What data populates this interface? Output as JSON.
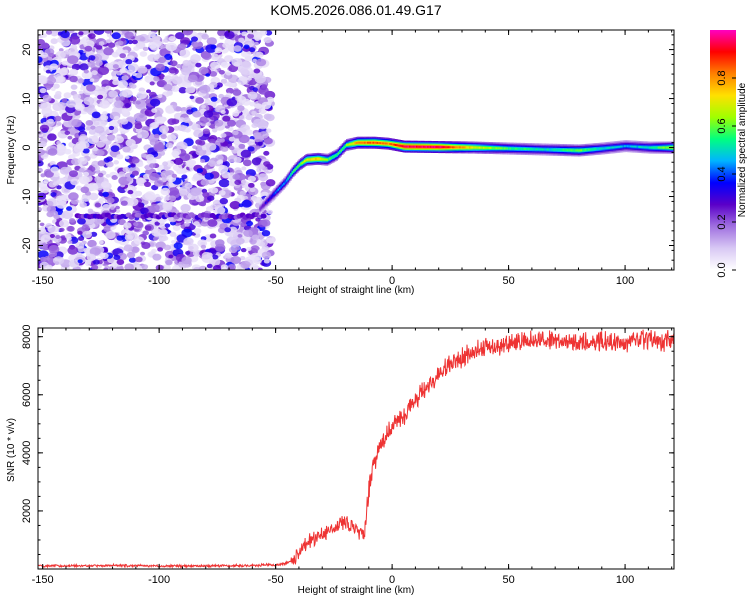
{
  "chart_data": [
    {
      "type": "heatmap",
      "title": "KOM5.2026.086.01.49.G17",
      "xlabel": "Height of straight line (km)",
      "ylabel": "Frequency (Hz)",
      "xlim": [
        -152,
        121
      ],
      "ylim": [
        -25,
        24
      ],
      "xticks": [
        -150,
        -100,
        -50,
        0,
        50,
        100
      ],
      "yticks": [
        -20,
        -10,
        0,
        10,
        20
      ],
      "colorbar": {
        "label": "Normalized spectral amplitude",
        "range": [
          0,
          1
        ],
        "ticks": [
          0.0,
          0.2,
          0.4,
          0.6,
          0.8
        ],
        "tick_labels": [
          "0.0",
          "0.2",
          "0.4",
          "0.6",
          "0.8"
        ],
        "colors": [
          "#ffffff",
          "#d8c8f4",
          "#a070e0",
          "#5a00c8",
          "#0000ff",
          "#00b4ff",
          "#00ff80",
          "#a0ff00",
          "#ffe000",
          "#ff8000",
          "#ff0000",
          "#ff00c0"
        ]
      },
      "noise_region_x": [
        -152,
        -52
      ],
      "ridge": [
        {
          "x": -57,
          "freq": -12.5,
          "amp": 0.25
        },
        {
          "x": -50,
          "freq": -9,
          "amp": 0.4
        },
        {
          "x": -46,
          "freq": -7,
          "amp": 0.45
        },
        {
          "x": -43,
          "freq": -5,
          "amp": 0.55
        },
        {
          "x": -40,
          "freq": -3.5,
          "amp": 0.6
        },
        {
          "x": -37,
          "freq": -2.5,
          "amp": 0.7
        },
        {
          "x": -32,
          "freq": -2.3,
          "amp": 0.75
        },
        {
          "x": -28,
          "freq": -2.5,
          "amp": 0.6
        },
        {
          "x": -24,
          "freq": -1.5,
          "amp": 0.55
        },
        {
          "x": -20,
          "freq": 0.5,
          "amp": 0.6
        },
        {
          "x": -15,
          "freq": 1,
          "amp": 0.8
        },
        {
          "x": -8,
          "freq": 1,
          "amp": 0.85
        },
        {
          "x": -2,
          "freq": 0.8,
          "amp": 0.8
        },
        {
          "x": 5,
          "freq": 0.2,
          "amp": 0.95
        },
        {
          "x": 20,
          "freq": 0.1,
          "amp": 0.95
        },
        {
          "x": 35,
          "freq": 0,
          "amp": 0.7
        },
        {
          "x": 50,
          "freq": -0.2,
          "amp": 0.55
        },
        {
          "x": 65,
          "freq": -0.4,
          "amp": 0.5
        },
        {
          "x": 80,
          "freq": -0.6,
          "amp": 0.6
        },
        {
          "x": 90,
          "freq": -0.2,
          "amp": 0.5
        },
        {
          "x": 100,
          "freq": 0.3,
          "amp": 0.45
        },
        {
          "x": 110,
          "freq": 0,
          "amp": 0.5
        },
        {
          "x": 120,
          "freq": 0,
          "amp": 0.65
        }
      ]
    },
    {
      "type": "line",
      "xlabel": "Height of straight line (km)",
      "ylabel": "SNR (10 * v/v)",
      "xlim": [
        -152,
        121
      ],
      "ylim": [
        0,
        8300
      ],
      "xticks": [
        -150,
        -100,
        -50,
        0,
        50,
        100
      ],
      "yticks": [
        2000,
        4000,
        6000,
        8000
      ],
      "color": "#ee3333",
      "series": [
        {
          "name": "SNR",
          "x": [
            -152,
            -120,
            -90,
            -60,
            -48,
            -44,
            -40,
            -36,
            -30,
            -25,
            -20,
            -15,
            -12,
            -10,
            -8,
            -5,
            -2,
            0,
            5,
            10,
            15,
            20,
            25,
            30,
            35,
            40,
            50,
            60,
            70,
            80,
            90,
            100,
            110,
            121
          ],
          "values": [
            100,
            120,
            100,
            120,
            150,
            250,
            550,
            900,
            1200,
            1500,
            1600,
            1400,
            1100,
            2700,
            3600,
            4300,
            4600,
            4900,
            5300,
            5800,
            6300,
            6700,
            7100,
            7300,
            7500,
            7600,
            7700,
            7850,
            7900,
            7750,
            7850,
            7800,
            7900,
            7850
          ]
        }
      ]
    }
  ]
}
